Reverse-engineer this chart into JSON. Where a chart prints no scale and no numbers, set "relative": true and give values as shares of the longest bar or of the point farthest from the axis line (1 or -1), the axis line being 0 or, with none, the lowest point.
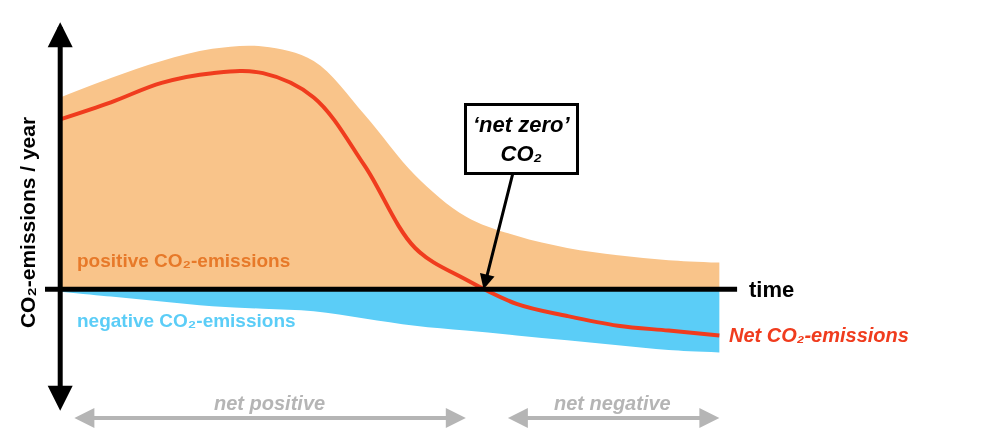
{
  "chart_data": {
    "type": "area",
    "relative": true,
    "xlabel": "time",
    "ylabel": "CO₂-emissions / year",
    "categories": [
      null,
      null,
      null,
      null,
      null,
      null,
      null,
      null,
      null,
      null,
      null,
      null,
      null,
      null
    ],
    "series": [
      {
        "name": "positive CO₂-emissions",
        "color": "#f9c48a",
        "values": [
          0.79,
          0.87,
          0.94,
          0.99,
          1,
          0.94,
          0.72,
          0.47,
          0.3,
          0.22,
          0.17,
          0.14,
          0.12,
          0.11
        ]
      },
      {
        "name": "negative CO₂-emissions",
        "color": "#5bcdf7",
        "values": [
          -0.01,
          -0.03,
          -0.05,
          -0.07,
          -0.08,
          -0.09,
          -0.12,
          -0.15,
          -0.17,
          -0.19,
          -0.21,
          -0.23,
          -0.25,
          -0.26
        ]
      },
      {
        "name": "Net CO₂-emissions",
        "type": "line",
        "color": "#f03c1e",
        "values": [
          0.7,
          0.77,
          0.85,
          0.89,
          0.89,
          0.79,
          0.51,
          0.17,
          0.04,
          -0.06,
          -0.11,
          -0.15,
          -0.17,
          -0.19
        ]
      }
    ],
    "annotations": [
      "‘net zero’ CO₂",
      "net positive",
      "net negative"
    ],
    "legend": false,
    "tick_labels": false
  }
}
